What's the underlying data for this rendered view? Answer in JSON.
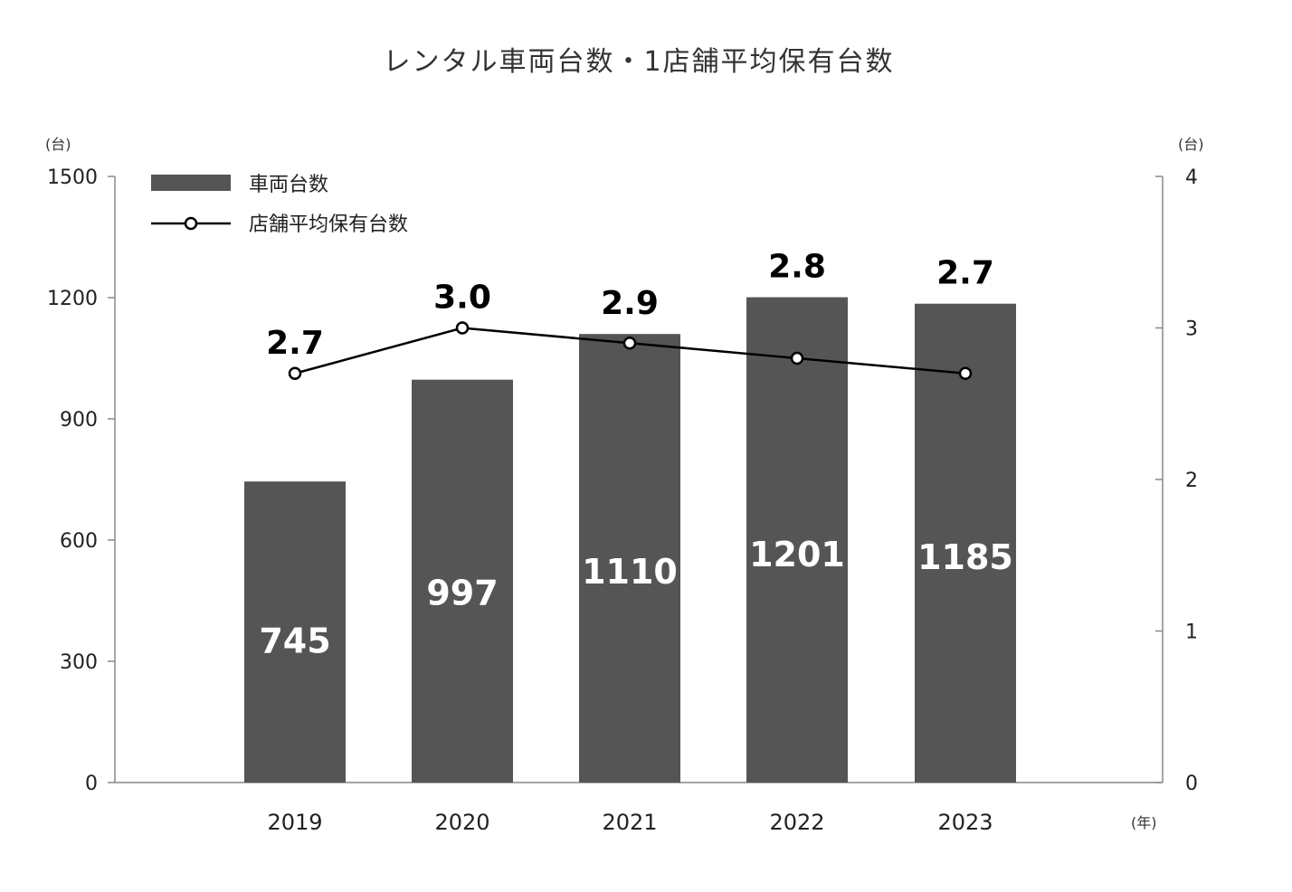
{
  "chart_data": {
    "type": "bar",
    "title": "レンタル車両台数・1店舗平均保有台数",
    "categories": [
      "2019",
      "2020",
      "2021",
      "2022",
      "2023"
    ],
    "x_unit": "(年)",
    "y_left": {
      "unit": "(台)",
      "range": [
        0,
        1500
      ],
      "ticks": [
        "0",
        "300",
        "600",
        "900",
        "1200",
        "1500"
      ]
    },
    "y_right": {
      "unit": "(台)",
      "range": [
        0,
        4
      ],
      "ticks": [
        "0",
        "1",
        "2",
        "3",
        "4"
      ]
    },
    "series": [
      {
        "name": "車両台数",
        "type": "bar",
        "axis": "left",
        "color": "#555555",
        "values": [
          745,
          997,
          1110,
          1201,
          1185
        ],
        "labels": [
          "745",
          "997",
          "1110",
          "1201",
          "1185"
        ]
      },
      {
        "name": "店舗平均保有台数",
        "type": "line",
        "axis": "right",
        "color": "#000000",
        "values": [
          2.7,
          3.0,
          2.9,
          2.8,
          2.7
        ],
        "labels": [
          "2.7",
          "3.0",
          "2.9",
          "2.8",
          "2.7"
        ]
      }
    ],
    "legend_position": "top-left",
    "grid": false
  }
}
